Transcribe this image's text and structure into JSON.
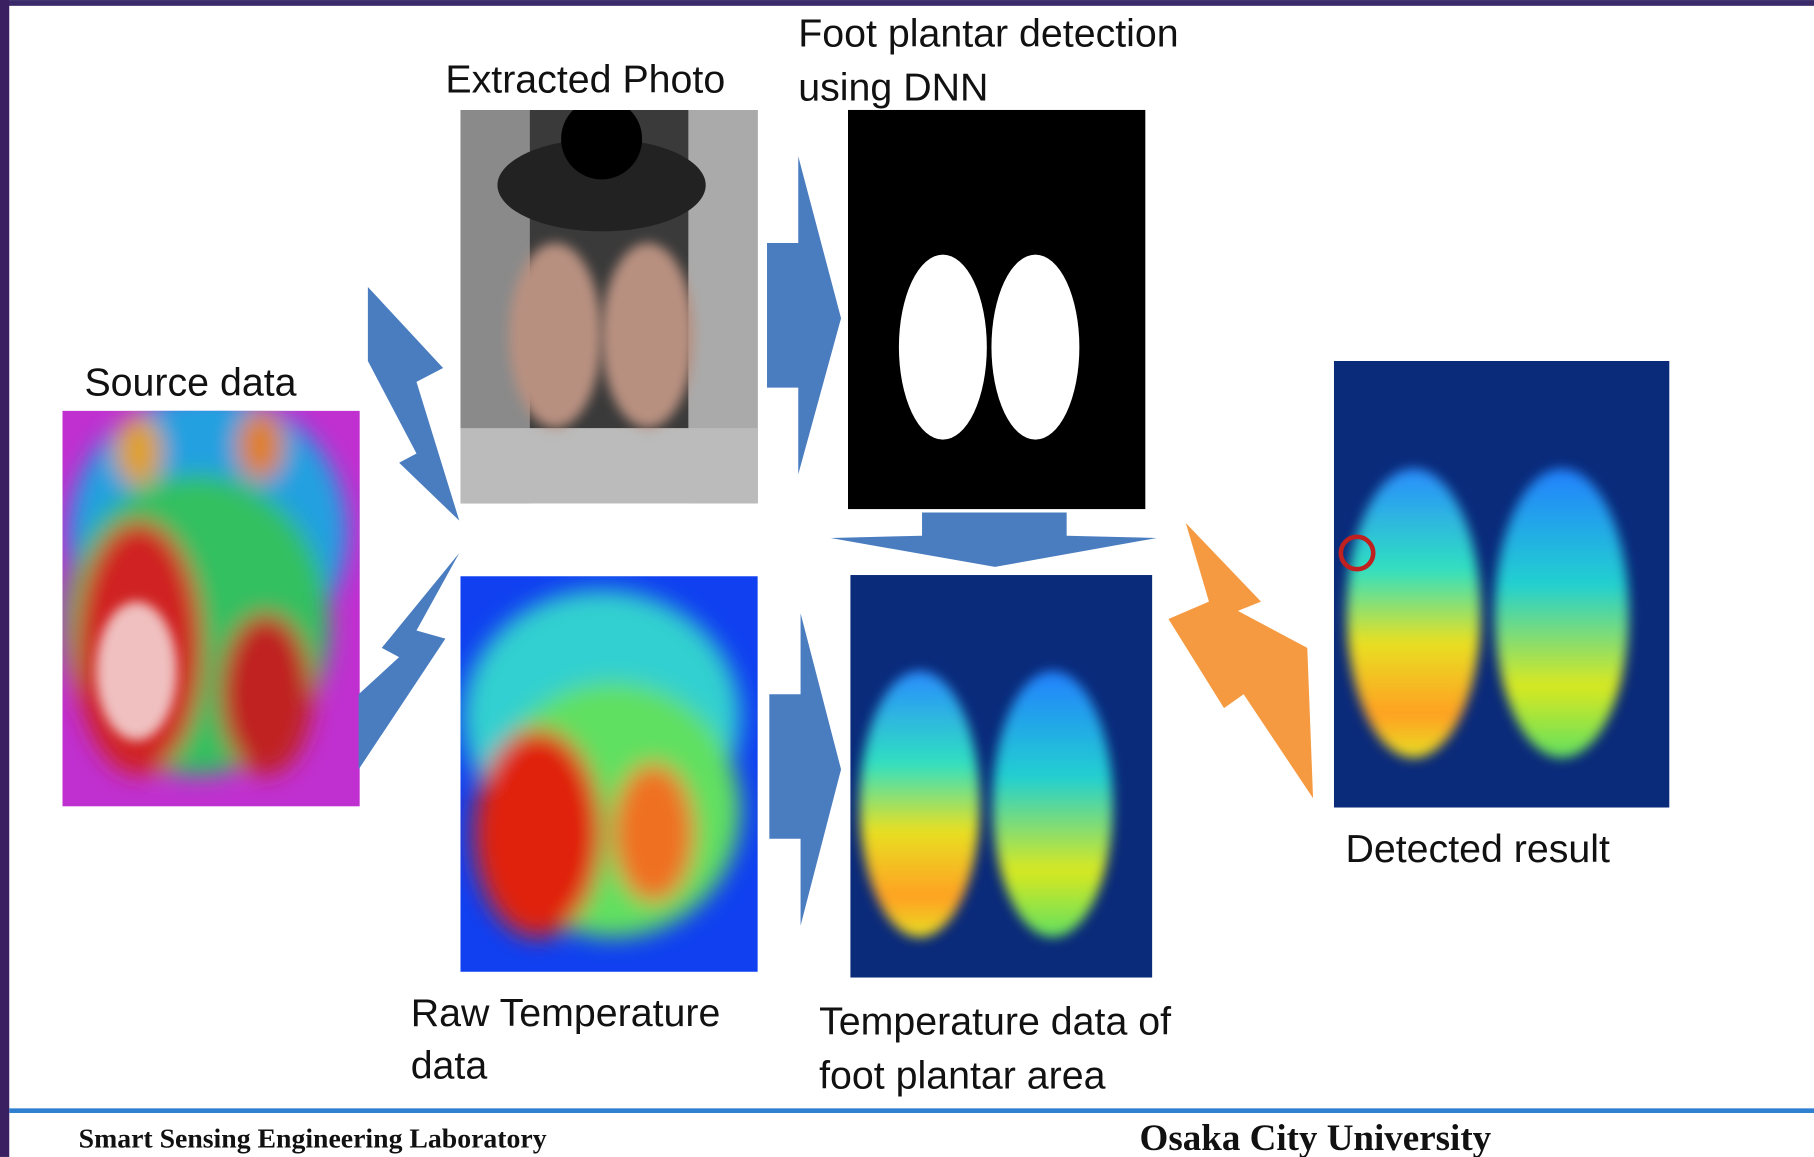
{
  "labels": {
    "source": "Source data",
    "extracted_photo": "Extracted Photo",
    "dnn": [
      "Foot plantar detection",
      "using DNN"
    ],
    "raw": [
      "Raw Temperature",
      "data"
    ],
    "plantar": [
      "Temperature data of",
      "foot plantar area"
    ],
    "detected": "Detected result"
  },
  "footer": {
    "left": "Smart Sensing Engineering Laboratory",
    "right": "Osaka City University"
  }
}
